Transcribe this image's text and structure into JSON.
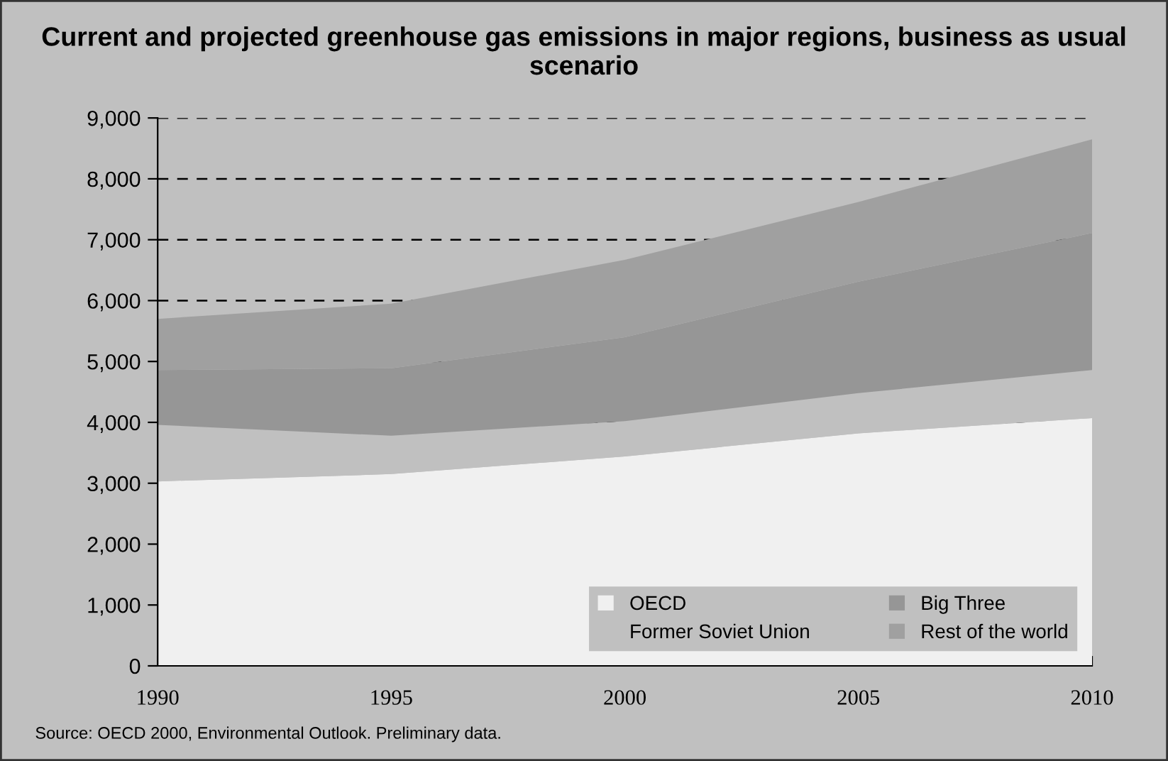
{
  "chart_data": {
    "type": "area",
    "stacked": true,
    "title": "Current and projected greenhouse gas emissions in major regions, business as usual scenario",
    "x": [
      1990,
      1995,
      2000,
      2005,
      2010
    ],
    "series": [
      {
        "name": "OECD",
        "color": "#f0f0f0",
        "values": [
          3030,
          3150,
          3440,
          3820,
          4070
        ]
      },
      {
        "name": "Former Soviet Union",
        "color": "#c0c0c0",
        "values": [
          930,
          630,
          580,
          660,
          790
        ]
      },
      {
        "name": "Big Three",
        "color": "#969696",
        "values": [
          900,
          1110,
          1380,
          1830,
          2250
        ]
      },
      {
        "name": "Rest of the world",
        "color": "#a0a0a0",
        "values": [
          840,
          1060,
          1270,
          1310,
          1540
        ]
      }
    ],
    "xlim": [
      1990,
      2010
    ],
    "xticks": [
      1990,
      1995,
      2000,
      2005,
      2010
    ],
    "ylim": [
      0,
      9000
    ],
    "yticks": [
      {
        "value": 0,
        "label": "0"
      },
      {
        "value": 1000,
        "label": "1,000"
      },
      {
        "value": 2000,
        "label": "2,000"
      },
      {
        "value": 3000,
        "label": "3,000"
      },
      {
        "value": 4000,
        "label": "4,000"
      },
      {
        "value": 5000,
        "label": "5,000"
      },
      {
        "value": 6000,
        "label": "6,000"
      },
      {
        "value": 7000,
        "label": "7,000"
      },
      {
        "value": 8000,
        "label": "8,000"
      },
      {
        "value": 9000,
        "label": "9,000"
      }
    ],
    "grid": "y",
    "legend": "bottom right",
    "annotations": [
      "Source: OECD 2000, Environmental Outlook. Preliminary data."
    ]
  }
}
